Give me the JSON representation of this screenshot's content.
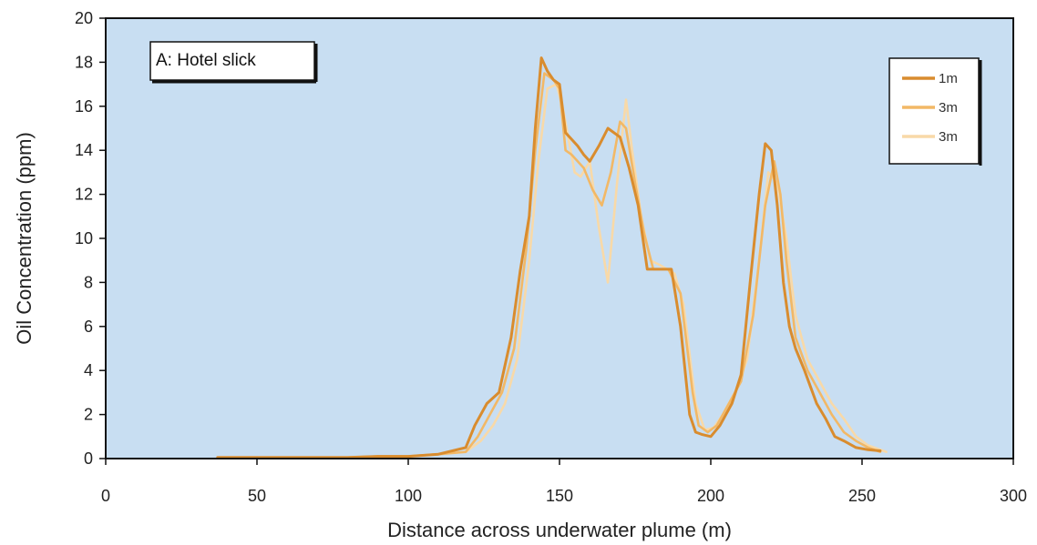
{
  "chart_data": {
    "type": "line",
    "title": "",
    "annotation": "A: Hotel slick",
    "xlabel": "Distance across underwater plume (m)",
    "ylabel": "Oil Concentration (ppm)",
    "xlim": [
      0,
      300
    ],
    "ylim": [
      0,
      20
    ],
    "xticks": [
      0,
      50,
      100,
      150,
      200,
      250,
      300
    ],
    "yticks": [
      0,
      2,
      4,
      6,
      8,
      10,
      12,
      14,
      16,
      18,
      20
    ],
    "grid": false,
    "legend_position": "top-right",
    "plot_background": "#c8def2",
    "series": [
      {
        "name": "1m",
        "color": "#d98c2e",
        "x": [
          37,
          50,
          60,
          70,
          80,
          90,
          100,
          110,
          119,
          122,
          126,
          130,
          134,
          137,
          140,
          142,
          144,
          146,
          148,
          150,
          152,
          154,
          156,
          158,
          160,
          163,
          166,
          170,
          173,
          176,
          179,
          182,
          187,
          190,
          193,
          195,
          197,
          200,
          203,
          207,
          210,
          213,
          216,
          218,
          220,
          222,
          224,
          226,
          228,
          231,
          235,
          238,
          241,
          244,
          248,
          252,
          256
        ],
        "values": [
          0.05,
          0.05,
          0.05,
          0.05,
          0.05,
          0.1,
          0.1,
          0.2,
          0.5,
          1.5,
          2.5,
          3.0,
          5.5,
          8.5,
          11.0,
          15.0,
          18.2,
          17.6,
          17.2,
          17.0,
          14.8,
          14.5,
          14.2,
          13.8,
          13.5,
          14.2,
          15.0,
          14.6,
          13.2,
          11.5,
          8.6,
          8.6,
          8.6,
          6.0,
          2.0,
          1.2,
          1.1,
          1.0,
          1.5,
          2.5,
          3.8,
          8.0,
          12.0,
          14.3,
          14.0,
          11.5,
          8.0,
          6.0,
          5.0,
          4.0,
          2.5,
          1.8,
          1.0,
          0.8,
          0.5,
          0.4,
          0.35
        ]
      },
      {
        "name": "3m",
        "color": "#f2b866",
        "x": [
          37,
          50,
          60,
          70,
          80,
          90,
          100,
          110,
          119,
          123,
          127,
          131,
          135,
          139,
          142,
          145,
          148,
          150,
          152,
          154,
          156,
          158,
          161,
          164,
          167,
          170,
          172,
          175,
          178,
          181,
          186,
          190,
          194,
          196,
          199,
          202,
          206,
          210,
          214,
          218,
          221,
          223,
          225,
          228,
          232,
          236,
          240,
          244,
          248,
          252,
          256
        ],
        "values": [
          0.05,
          0.05,
          0.05,
          0.05,
          0.05,
          0.1,
          0.1,
          0.2,
          0.3,
          1.0,
          2.0,
          3.0,
          5.0,
          9.5,
          14.0,
          17.5,
          17.2,
          16.8,
          14.0,
          13.8,
          13.5,
          13.2,
          12.2,
          11.5,
          13.0,
          15.3,
          15.0,
          12.5,
          10.2,
          8.6,
          8.6,
          7.5,
          3.0,
          1.5,
          1.2,
          1.5,
          2.5,
          3.5,
          6.5,
          11.5,
          13.5,
          12.0,
          9.0,
          5.5,
          4.0,
          3.0,
          2.0,
          1.2,
          0.8,
          0.5,
          0.3
        ]
      },
      {
        "name": "3m",
        "color": "#f8d9a8",
        "x": [
          37,
          50,
          60,
          70,
          80,
          90,
          100,
          110,
          119,
          124,
          128,
          132,
          136,
          140,
          143,
          146,
          149,
          151,
          153,
          155,
          157,
          160,
          163,
          166,
          169,
          172,
          174,
          177,
          180,
          183,
          188,
          191,
          195,
          198,
          201,
          204,
          208,
          212,
          216,
          219,
          222,
          225,
          228,
          232,
          236,
          240,
          244,
          248,
          252,
          258
        ],
        "values": [
          0.05,
          0.05,
          0.05,
          0.05,
          0.05,
          0.1,
          0.1,
          0.2,
          0.3,
          0.8,
          1.5,
          2.5,
          4.5,
          9.0,
          13.5,
          16.8,
          17.0,
          16.0,
          14.5,
          13.0,
          12.8,
          13.5,
          10.5,
          8.0,
          12.5,
          16.3,
          14.0,
          11.0,
          9.0,
          8.8,
          8.4,
          7.0,
          2.5,
          1.3,
          1.4,
          2.0,
          3.0,
          4.5,
          9.0,
          13.0,
          12.5,
          10.0,
          6.5,
          4.5,
          3.5,
          2.5,
          1.8,
          1.0,
          0.6,
          0.3
        ]
      }
    ]
  }
}
